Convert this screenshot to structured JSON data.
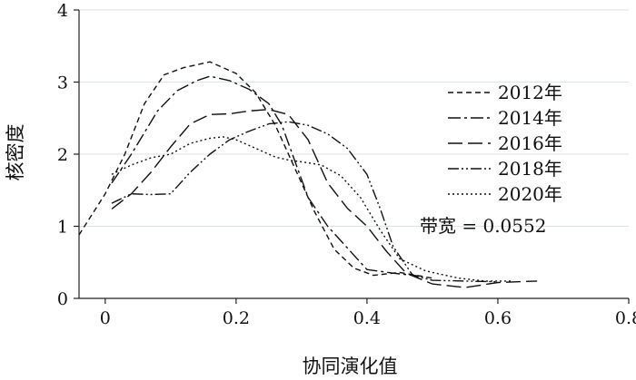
{
  "chart_data": {
    "type": "line",
    "xlabel": "协同演化值",
    "ylabel": "核密度",
    "xlim": [
      -0.04,
      0.8
    ],
    "ylim": [
      0,
      4
    ],
    "xticks": [
      0,
      0.2,
      0.4,
      0.6,
      0.8
    ],
    "xtick_labels": [
      "0",
      "0.2",
      "0.4",
      "0.6",
      "0.8"
    ],
    "yticks": [
      0,
      1,
      2,
      3,
      4
    ],
    "ytick_labels": [
      "0",
      "1",
      "2",
      "3",
      "4"
    ],
    "grid": "horizontal",
    "legend_position": "right",
    "annotation": "带宽 = 0.0552",
    "series": [
      {
        "name": "2012年",
        "dash": "6,4",
        "points": [
          [
            -0.04,
            0.88
          ],
          [
            0,
            1.45
          ],
          [
            0.03,
            2.0
          ],
          [
            0.06,
            2.7
          ],
          [
            0.09,
            3.1
          ],
          [
            0.12,
            3.2
          ],
          [
            0.16,
            3.28
          ],
          [
            0.2,
            3.12
          ],
          [
            0.23,
            2.85
          ],
          [
            0.26,
            2.4
          ],
          [
            0.29,
            1.8
          ],
          [
            0.32,
            1.2
          ],
          [
            0.35,
            0.68
          ],
          [
            0.38,
            0.42
          ],
          [
            0.41,
            0.32
          ],
          [
            0.45,
            0.36
          ],
          [
            0.5,
            0.28
          ]
        ]
      },
      {
        "name": "2014年",
        "dash": "14,4,3,4",
        "points": [
          [
            0.01,
            1.6
          ],
          [
            0.04,
            2.0
          ],
          [
            0.08,
            2.6
          ],
          [
            0.11,
            2.88
          ],
          [
            0.14,
            3.02
          ],
          [
            0.16,
            3.08
          ],
          [
            0.19,
            3.02
          ],
          [
            0.22,
            2.9
          ],
          [
            0.25,
            2.7
          ],
          [
            0.27,
            2.4
          ],
          [
            0.29,
            1.9
          ],
          [
            0.31,
            1.4
          ],
          [
            0.34,
            1.0
          ],
          [
            0.37,
            0.7
          ],
          [
            0.4,
            0.4
          ],
          [
            0.44,
            0.35
          ],
          [
            0.49,
            0.3
          ]
        ]
      },
      {
        "name": "2016年",
        "dash": "16,6",
        "points": [
          [
            0.01,
            1.24
          ],
          [
            0.04,
            1.45
          ],
          [
            0.07,
            1.75
          ],
          [
            0.1,
            2.1
          ],
          [
            0.13,
            2.42
          ],
          [
            0.16,
            2.55
          ],
          [
            0.19,
            2.56
          ],
          [
            0.22,
            2.6
          ],
          [
            0.25,
            2.62
          ],
          [
            0.28,
            2.55
          ],
          [
            0.31,
            2.2
          ],
          [
            0.34,
            1.6
          ],
          [
            0.37,
            1.25
          ],
          [
            0.4,
            1.0
          ],
          [
            0.43,
            0.65
          ],
          [
            0.46,
            0.35
          ],
          [
            0.5,
            0.2
          ],
          [
            0.55,
            0.15
          ],
          [
            0.6,
            0.22
          ],
          [
            0.66,
            0.24
          ]
        ]
      },
      {
        "name": "2018年",
        "dash": "12,3,2,3,2,3",
        "points": [
          [
            0.01,
            1.32
          ],
          [
            0.04,
            1.45
          ],
          [
            0.07,
            1.44
          ],
          [
            0.1,
            1.45
          ],
          [
            0.13,
            1.75
          ],
          [
            0.16,
            2.0
          ],
          [
            0.19,
            2.2
          ],
          [
            0.22,
            2.32
          ],
          [
            0.25,
            2.42
          ],
          [
            0.28,
            2.45
          ],
          [
            0.31,
            2.4
          ],
          [
            0.34,
            2.28
          ],
          [
            0.37,
            2.08
          ],
          [
            0.4,
            1.72
          ],
          [
            0.42,
            1.25
          ],
          [
            0.44,
            0.72
          ],
          [
            0.47,
            0.32
          ],
          [
            0.5,
            0.25
          ],
          [
            0.55,
            0.24
          ],
          [
            0.6,
            0.23
          ]
        ]
      },
      {
        "name": "2020年",
        "dash": "2,3",
        "points": [
          [
            0.01,
            1.72
          ],
          [
            0.04,
            1.85
          ],
          [
            0.07,
            1.95
          ],
          [
            0.1,
            2.0
          ],
          [
            0.13,
            2.15
          ],
          [
            0.16,
            2.22
          ],
          [
            0.18,
            2.24
          ],
          [
            0.2,
            2.2
          ],
          [
            0.23,
            2.08
          ],
          [
            0.26,
            1.96
          ],
          [
            0.28,
            1.92
          ],
          [
            0.31,
            1.88
          ],
          [
            0.33,
            1.85
          ],
          [
            0.36,
            1.7
          ],
          [
            0.39,
            1.4
          ],
          [
            0.42,
            0.95
          ],
          [
            0.45,
            0.55
          ],
          [
            0.49,
            0.38
          ],
          [
            0.54,
            0.28
          ],
          [
            0.58,
            0.24
          ],
          [
            0.62,
            0.24
          ]
        ]
      }
    ]
  }
}
